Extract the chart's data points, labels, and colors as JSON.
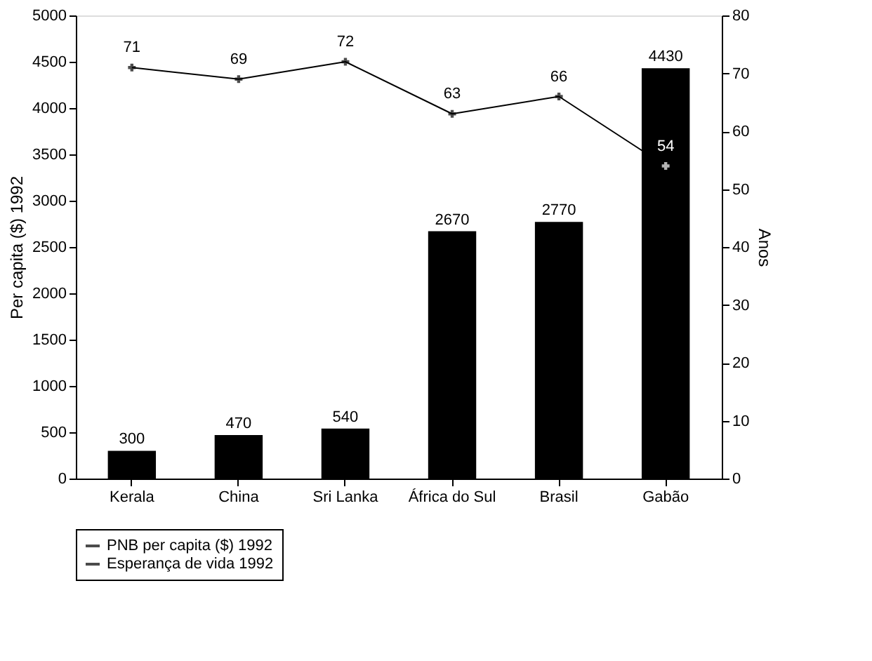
{
  "chart_data": {
    "type": "bar",
    "ylabel": "Per capita ($) 1992",
    "y2label": "Anos",
    "categories": [
      "Kerala",
      "China",
      "Sri Lanka",
      "África do Sul",
      "Brasil",
      "Gabão"
    ],
    "series": [
      {
        "name": "PNB per capita ($) 1992",
        "color": "#000000",
        "values": [
          300,
          470,
          540,
          2670,
          2770,
          4430
        ]
      },
      {
        "name": "Esperança de vida 1992",
        "type": "line",
        "axis": "y2",
        "color": "#000000",
        "marker": "cross",
        "values": [
          71,
          69,
          72,
          63,
          66,
          54
        ]
      }
    ],
    "ylim": [
      0,
      5000
    ],
    "yticks": [
      0,
      500,
      1000,
      1500,
      2000,
      2500,
      3000,
      3500,
      4000,
      4500,
      5000
    ],
    "y2lim": [
      0,
      80
    ],
    "y2ticks": [
      0,
      10,
      20,
      30,
      40,
      50,
      60,
      70,
      80
    ],
    "data_labels": true,
    "grid": false,
    "legend": "bottom"
  }
}
